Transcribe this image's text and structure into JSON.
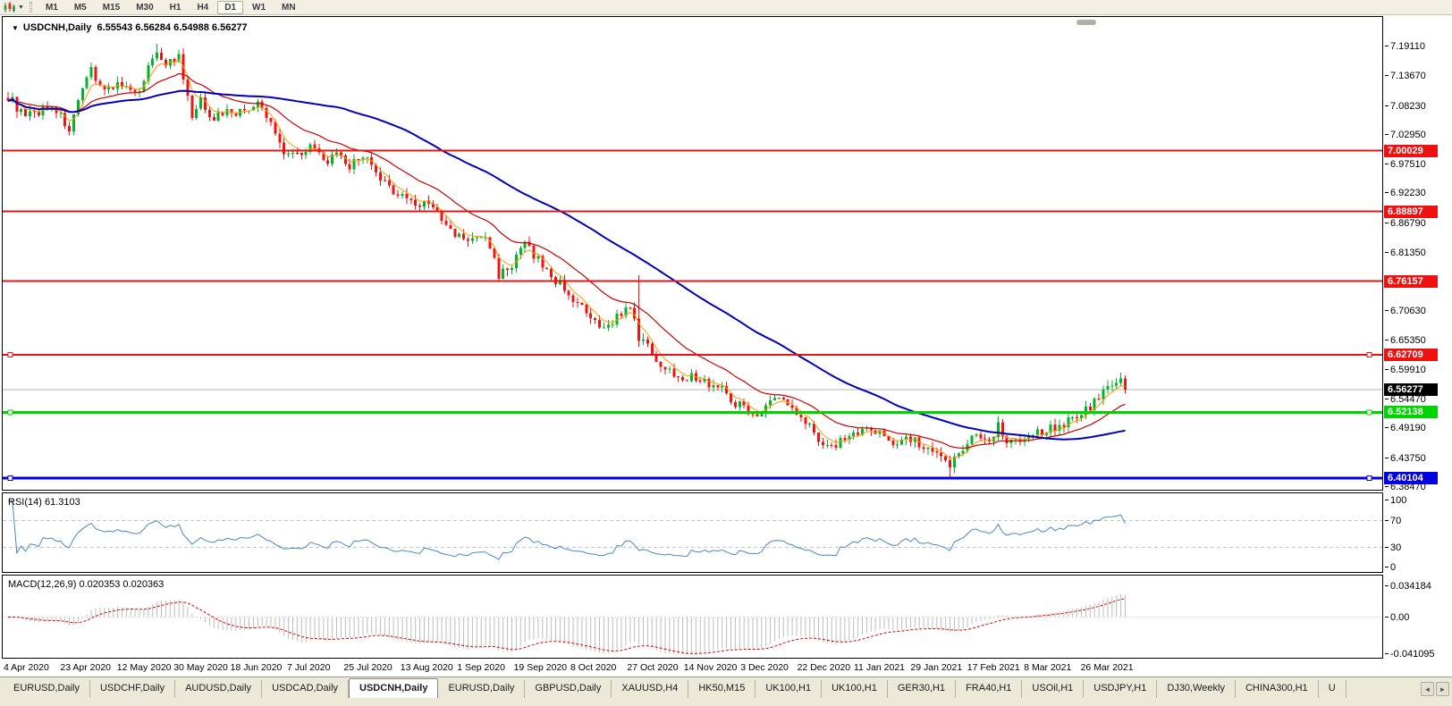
{
  "toolbar": {
    "chart_icon": "candlestick-chart-icon",
    "dropdown_icon": "chevron-down-icon",
    "timeframes": [
      "M1",
      "M5",
      "M15",
      "M30",
      "H1",
      "H4",
      "D1",
      "W1",
      "MN"
    ],
    "active_timeframe": "D1"
  },
  "chart": {
    "title_collapse_icon": "▼",
    "title": "USDCNH,Daily",
    "ohlc_text": "6.55543 6.56284 6.54988 6.56277",
    "price_axis_labels": [
      "7.19110",
      "7.13670",
      "7.08230",
      "7.02950",
      "6.97510",
      "6.92230",
      "6.86790",
      "6.81350",
      "6.70630",
      "6.65350",
      "6.59910",
      "6.54470",
      "6.49190",
      "6.43750",
      "6.38470"
    ],
    "level_lines": [
      {
        "label": "7.00029",
        "price": 7.00029,
        "color": "#ee1111",
        "width": 2,
        "text_color": "#ffffff",
        "handles": false
      },
      {
        "label": "6.88897",
        "price": 6.88897,
        "color": "#ee1111",
        "width": 2,
        "text_color": "#ffffff",
        "handles": false
      },
      {
        "label": "6.76157",
        "price": 6.76157,
        "color": "#ee1111",
        "width": 2,
        "text_color": "#ffffff",
        "handles": false
      },
      {
        "label": "6.62709",
        "price": 6.62709,
        "color": "#ee1111",
        "width": 2,
        "text_color": "#ffffff",
        "handles": true
      },
      {
        "label": "6.52138",
        "price": 6.52138,
        "color": "#00d400",
        "width": 3,
        "text_color": "#ffffff",
        "handles": true
      },
      {
        "label": "6.40104",
        "price": 6.40104,
        "color": "#0000e0",
        "width": 3,
        "text_color": "#ffffff",
        "handles": true
      }
    ],
    "current_price": {
      "label": "6.56277",
      "price": 6.56277,
      "line_color": "#b4b4b4",
      "box_color": "#000000"
    },
    "up_color": "#00b42c",
    "down_color": "#ee1414",
    "ma_lines": [
      {
        "name": "ma-fast",
        "type": "ema",
        "period": 5,
        "color": "#ff9900",
        "width": 1
      },
      {
        "name": "ma-medium",
        "type": "ema",
        "period": 20,
        "color": "#cc0000",
        "width": 1.2
      },
      {
        "name": "ma-slow",
        "type": "sma",
        "period": 60,
        "color": "#0000bb",
        "width": 2
      }
    ]
  },
  "chart_data": {
    "type": "candlestick",
    "symbol": "USDCNH",
    "timeframe": "Daily",
    "ohlc_display": {
      "open": "6.55543",
      "high": "6.56284",
      "low": "6.54988",
      "close": "6.56277"
    },
    "num_candles": 256,
    "last_close": 6.56277,
    "close_waypoints": [
      [
        0,
        7.1
      ],
      [
        4,
        7.06
      ],
      [
        10,
        7.085
      ],
      [
        14,
        7.04
      ],
      [
        19,
        7.15
      ],
      [
        22,
        7.11
      ],
      [
        25,
        7.125
      ],
      [
        29,
        7.1
      ],
      [
        31,
        7.135
      ],
      [
        34,
        7.185
      ],
      [
        36,
        7.16
      ],
      [
        39,
        7.17
      ],
      [
        40,
        7.13
      ],
      [
        42,
        7.06
      ],
      [
        44,
        7.09
      ],
      [
        47,
        7.06
      ],
      [
        50,
        7.075
      ],
      [
        53,
        7.07
      ],
      [
        57,
        7.085
      ],
      [
        60,
        7.05
      ],
      [
        63,
        7.0
      ],
      [
        66,
        6.995
      ],
      [
        69,
        7.01
      ],
      [
        72,
        6.98
      ],
      [
        75,
        6.99
      ],
      [
        78,
        6.97
      ],
      [
        81,
        6.995
      ],
      [
        84,
        6.955
      ],
      [
        87,
        6.93
      ],
      [
        90,
        6.92
      ],
      [
        93,
        6.9
      ],
      [
        96,
        6.91
      ],
      [
        99,
        6.87
      ],
      [
        102,
        6.845
      ],
      [
        106,
        6.835
      ],
      [
        109,
        6.845
      ],
      [
        112,
        6.775
      ],
      [
        115,
        6.79
      ],
      [
        118,
        6.83
      ],
      [
        121,
        6.8
      ],
      [
        124,
        6.77
      ],
      [
        127,
        6.75
      ],
      [
        130,
        6.72
      ],
      [
        133,
        6.69
      ],
      [
        136,
        6.67
      ],
      [
        139,
        6.7
      ],
      [
        142,
        6.71
      ],
      [
        144,
        6.66
      ],
      [
        147,
        6.63
      ],
      [
        150,
        6.6
      ],
      [
        153,
        6.59
      ],
      [
        157,
        6.585
      ],
      [
        160,
        6.575
      ],
      [
        163,
        6.565
      ],
      [
        166,
        6.54
      ],
      [
        169,
        6.525
      ],
      [
        172,
        6.52
      ],
      [
        175,
        6.55
      ],
      [
        178,
        6.535
      ],
      [
        181,
        6.52
      ],
      [
        184,
        6.485
      ],
      [
        187,
        6.455
      ],
      [
        190,
        6.47
      ],
      [
        193,
        6.485
      ],
      [
        196,
        6.49
      ],
      [
        199,
        6.48
      ],
      [
        202,
        6.47
      ],
      [
        206,
        6.475
      ],
      [
        209,
        6.455
      ],
      [
        212,
        6.44
      ],
      [
        215,
        6.425
      ],
      [
        218,
        6.46
      ],
      [
        221,
        6.48
      ],
      [
        224,
        6.47
      ],
      [
        226,
        6.5
      ],
      [
        228,
        6.47
      ],
      [
        231,
        6.475
      ],
      [
        234,
        6.48
      ],
      [
        237,
        6.49
      ],
      [
        240,
        6.5
      ],
      [
        243,
        6.51
      ],
      [
        246,
        6.525
      ],
      [
        249,
        6.55
      ],
      [
        252,
        6.575
      ],
      [
        254,
        6.585
      ],
      [
        255,
        6.563
      ]
    ],
    "special_wicks": {
      "34": {
        "high": 7.196
      },
      "144": {
        "high": 6.772
      },
      "215": {
        "low": 6.403
      }
    }
  },
  "rsi": {
    "label": "RSI(14) 61.3103",
    "period": 14,
    "current_value": 61.3103,
    "color": "#4a86c8",
    "levels": [
      70,
      30
    ],
    "axis_labels": [
      {
        "text": "100",
        "value": 100
      },
      {
        "text": "70",
        "value": 70
      },
      {
        "text": "30",
        "value": 30
      },
      {
        "text": "0",
        "value": 0
      }
    ]
  },
  "macd": {
    "label": "MACD(12,26,9) 0.020353 0.020363",
    "fast": 12,
    "slow": 26,
    "signal": 9,
    "values_text": [
      "0.020353",
      "0.020363"
    ],
    "axis_max": 0.034184,
    "axis_min": -0.041095,
    "axis_labels": [
      {
        "text": "0.034184",
        "value": 0.034184
      },
      {
        "text": "0.00",
        "value": 0
      },
      {
        "text": "-0.041095",
        "value": -0.041095
      }
    ],
    "hist_color": "#bdbdbd",
    "signal_color": "#dd0000"
  },
  "date_axis": [
    "4 Apr 2020",
    "23 Apr 2020",
    "12 May 2020",
    "30 May 2020",
    "18 Jun 2020",
    "7 Jul 2020",
    "25 Jul 2020",
    "13 Aug 2020",
    "1 Sep 2020",
    "19 Sep 2020",
    "8 Oct 2020",
    "27 Oct 2020",
    "14 Nov 2020",
    "3 Dec 2020",
    "22 Dec 2020",
    "11 Jan 2021",
    "29 Jan 2021",
    "17 Feb 2021",
    "8 Mar 2021",
    "26 Mar 2021"
  ],
  "tabs": {
    "items": [
      "EURUSD,Daily",
      "USDCHF,Daily",
      "AUDUSD,Daily",
      "USDCAD,Daily",
      "USDCNH,Daily",
      "EURUSD,Daily",
      "GBPUSD,Daily",
      "XAUUSD,H4",
      "HK50,M15",
      "UK100,H1",
      "UK100,H1",
      "GER30,H1",
      "FRA40,H1",
      "USOil,H1",
      "USDJPY,H1",
      "DJ30,Weekly",
      "CHINA300,H1",
      "U"
    ],
    "active_index": 4,
    "scroll_left_icon": "◄",
    "scroll_right_icon": "►"
  }
}
